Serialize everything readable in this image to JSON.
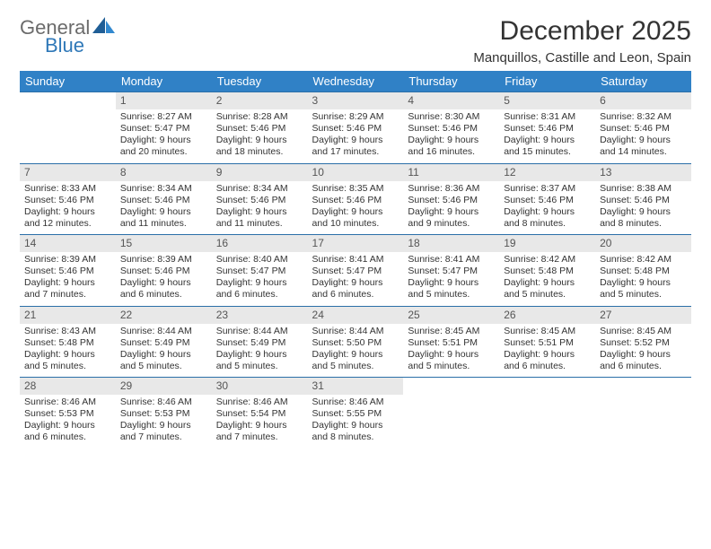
{
  "brand": {
    "general": "General",
    "blue": "Blue"
  },
  "header": {
    "month_title": "December 2025",
    "location": "Manquillos, Castille and Leon, Spain"
  },
  "colors": {
    "header_bg": "#3081c6",
    "header_fg": "#ffffff",
    "daynum_bg": "#e8e8e8",
    "row_border": "#2b6fa8",
    "brand_gray": "#6b6b6b",
    "brand_blue": "#2f78b8"
  },
  "weekdays": [
    "Sunday",
    "Monday",
    "Tuesday",
    "Wednesday",
    "Thursday",
    "Friday",
    "Saturday"
  ],
  "weeks": [
    [
      {
        "n": "",
        "lines": []
      },
      {
        "n": "1",
        "lines": [
          "Sunrise: 8:27 AM",
          "Sunset: 5:47 PM",
          "Daylight: 9 hours and 20 minutes."
        ]
      },
      {
        "n": "2",
        "lines": [
          "Sunrise: 8:28 AM",
          "Sunset: 5:46 PM",
          "Daylight: 9 hours and 18 minutes."
        ]
      },
      {
        "n": "3",
        "lines": [
          "Sunrise: 8:29 AM",
          "Sunset: 5:46 PM",
          "Daylight: 9 hours and 17 minutes."
        ]
      },
      {
        "n": "4",
        "lines": [
          "Sunrise: 8:30 AM",
          "Sunset: 5:46 PM",
          "Daylight: 9 hours and 16 minutes."
        ]
      },
      {
        "n": "5",
        "lines": [
          "Sunrise: 8:31 AM",
          "Sunset: 5:46 PM",
          "Daylight: 9 hours and 15 minutes."
        ]
      },
      {
        "n": "6",
        "lines": [
          "Sunrise: 8:32 AM",
          "Sunset: 5:46 PM",
          "Daylight: 9 hours and 14 minutes."
        ]
      }
    ],
    [
      {
        "n": "7",
        "lines": [
          "Sunrise: 8:33 AM",
          "Sunset: 5:46 PM",
          "Daylight: 9 hours and 12 minutes."
        ]
      },
      {
        "n": "8",
        "lines": [
          "Sunrise: 8:34 AM",
          "Sunset: 5:46 PM",
          "Daylight: 9 hours and 11 minutes."
        ]
      },
      {
        "n": "9",
        "lines": [
          "Sunrise: 8:34 AM",
          "Sunset: 5:46 PM",
          "Daylight: 9 hours and 11 minutes."
        ]
      },
      {
        "n": "10",
        "lines": [
          "Sunrise: 8:35 AM",
          "Sunset: 5:46 PM",
          "Daylight: 9 hours and 10 minutes."
        ]
      },
      {
        "n": "11",
        "lines": [
          "Sunrise: 8:36 AM",
          "Sunset: 5:46 PM",
          "Daylight: 9 hours and 9 minutes."
        ]
      },
      {
        "n": "12",
        "lines": [
          "Sunrise: 8:37 AM",
          "Sunset: 5:46 PM",
          "Daylight: 9 hours and 8 minutes."
        ]
      },
      {
        "n": "13",
        "lines": [
          "Sunrise: 8:38 AM",
          "Sunset: 5:46 PM",
          "Daylight: 9 hours and 8 minutes."
        ]
      }
    ],
    [
      {
        "n": "14",
        "lines": [
          "Sunrise: 8:39 AM",
          "Sunset: 5:46 PM",
          "Daylight: 9 hours and 7 minutes."
        ]
      },
      {
        "n": "15",
        "lines": [
          "Sunrise: 8:39 AM",
          "Sunset: 5:46 PM",
          "Daylight: 9 hours and 6 minutes."
        ]
      },
      {
        "n": "16",
        "lines": [
          "Sunrise: 8:40 AM",
          "Sunset: 5:47 PM",
          "Daylight: 9 hours and 6 minutes."
        ]
      },
      {
        "n": "17",
        "lines": [
          "Sunrise: 8:41 AM",
          "Sunset: 5:47 PM",
          "Daylight: 9 hours and 6 minutes."
        ]
      },
      {
        "n": "18",
        "lines": [
          "Sunrise: 8:41 AM",
          "Sunset: 5:47 PM",
          "Daylight: 9 hours and 5 minutes."
        ]
      },
      {
        "n": "19",
        "lines": [
          "Sunrise: 8:42 AM",
          "Sunset: 5:48 PM",
          "Daylight: 9 hours and 5 minutes."
        ]
      },
      {
        "n": "20",
        "lines": [
          "Sunrise: 8:42 AM",
          "Sunset: 5:48 PM",
          "Daylight: 9 hours and 5 minutes."
        ]
      }
    ],
    [
      {
        "n": "21",
        "lines": [
          "Sunrise: 8:43 AM",
          "Sunset: 5:48 PM",
          "Daylight: 9 hours and 5 minutes."
        ]
      },
      {
        "n": "22",
        "lines": [
          "Sunrise: 8:44 AM",
          "Sunset: 5:49 PM",
          "Daylight: 9 hours and 5 minutes."
        ]
      },
      {
        "n": "23",
        "lines": [
          "Sunrise: 8:44 AM",
          "Sunset: 5:49 PM",
          "Daylight: 9 hours and 5 minutes."
        ]
      },
      {
        "n": "24",
        "lines": [
          "Sunrise: 8:44 AM",
          "Sunset: 5:50 PM",
          "Daylight: 9 hours and 5 minutes."
        ]
      },
      {
        "n": "25",
        "lines": [
          "Sunrise: 8:45 AM",
          "Sunset: 5:51 PM",
          "Daylight: 9 hours and 5 minutes."
        ]
      },
      {
        "n": "26",
        "lines": [
          "Sunrise: 8:45 AM",
          "Sunset: 5:51 PM",
          "Daylight: 9 hours and 6 minutes."
        ]
      },
      {
        "n": "27",
        "lines": [
          "Sunrise: 8:45 AM",
          "Sunset: 5:52 PM",
          "Daylight: 9 hours and 6 minutes."
        ]
      }
    ],
    [
      {
        "n": "28",
        "lines": [
          "Sunrise: 8:46 AM",
          "Sunset: 5:53 PM",
          "Daylight: 9 hours and 6 minutes."
        ]
      },
      {
        "n": "29",
        "lines": [
          "Sunrise: 8:46 AM",
          "Sunset: 5:53 PM",
          "Daylight: 9 hours and 7 minutes."
        ]
      },
      {
        "n": "30",
        "lines": [
          "Sunrise: 8:46 AM",
          "Sunset: 5:54 PM",
          "Daylight: 9 hours and 7 minutes."
        ]
      },
      {
        "n": "31",
        "lines": [
          "Sunrise: 8:46 AM",
          "Sunset: 5:55 PM",
          "Daylight: 9 hours and 8 minutes."
        ]
      },
      {
        "n": "",
        "lines": []
      },
      {
        "n": "",
        "lines": []
      },
      {
        "n": "",
        "lines": []
      }
    ]
  ]
}
